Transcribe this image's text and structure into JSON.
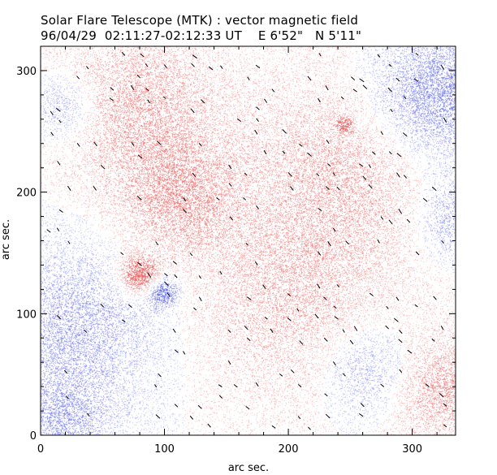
{
  "chart_data": {
    "type": "heatmap",
    "title": "Solar Flare Telescope (MTK) : vector magnetic field",
    "subtitle": "96/04/29  02:11:27-02:12:33 UT    E 6'52\"   N 5'11\"",
    "xlabel": "arc sec.",
    "ylabel": "arc sec.",
    "xlim": [
      0,
      335
    ],
    "ylim": [
      0,
      320
    ],
    "xticks": [
      0,
      100,
      200,
      300
    ],
    "yticks": [
      0,
      100,
      200,
      300
    ],
    "colors": {
      "positive_polarity": "#ee6a6a",
      "negative_polarity": "#6a72ee",
      "transverse_vectors": "#000000"
    },
    "regions": [
      {
        "polarity": "positive",
        "x": 80,
        "y": 132,
        "radius": 15,
        "strength": 1.0
      },
      {
        "polarity": "negative",
        "x": 98,
        "y": 118,
        "radius": 11,
        "strength": 0.95
      },
      {
        "polarity": "positive",
        "x": 110,
        "y": 195,
        "radius": 45,
        "strength": 0.45
      },
      {
        "polarity": "positive",
        "x": 80,
        "y": 270,
        "radius": 60,
        "strength": 0.4
      },
      {
        "polarity": "positive",
        "x": 240,
        "y": 215,
        "radius": 75,
        "strength": 0.35
      },
      {
        "polarity": "positive",
        "x": 200,
        "y": 110,
        "radius": 70,
        "strength": 0.3
      },
      {
        "polarity": "positive",
        "x": 325,
        "y": 40,
        "radius": 40,
        "strength": 0.45
      },
      {
        "polarity": "positive",
        "x": 245,
        "y": 255,
        "radius": 6,
        "strength": 0.9
      },
      {
        "polarity": "negative",
        "x": 320,
        "y": 280,
        "radius": 50,
        "strength": 0.6
      },
      {
        "polarity": "negative",
        "x": 30,
        "y": 90,
        "radius": 60,
        "strength": 0.4
      },
      {
        "polarity": "negative",
        "x": 20,
        "y": 10,
        "radius": 35,
        "strength": 0.4
      },
      {
        "polarity": "negative",
        "x": 20,
        "y": 270,
        "radius": 25,
        "strength": 0.35
      },
      {
        "polarity": "negative",
        "x": 265,
        "y": 55,
        "radius": 35,
        "strength": 0.35
      },
      {
        "polarity": "negative",
        "x": 335,
        "y": 180,
        "radius": 30,
        "strength": 0.4
      }
    ]
  }
}
